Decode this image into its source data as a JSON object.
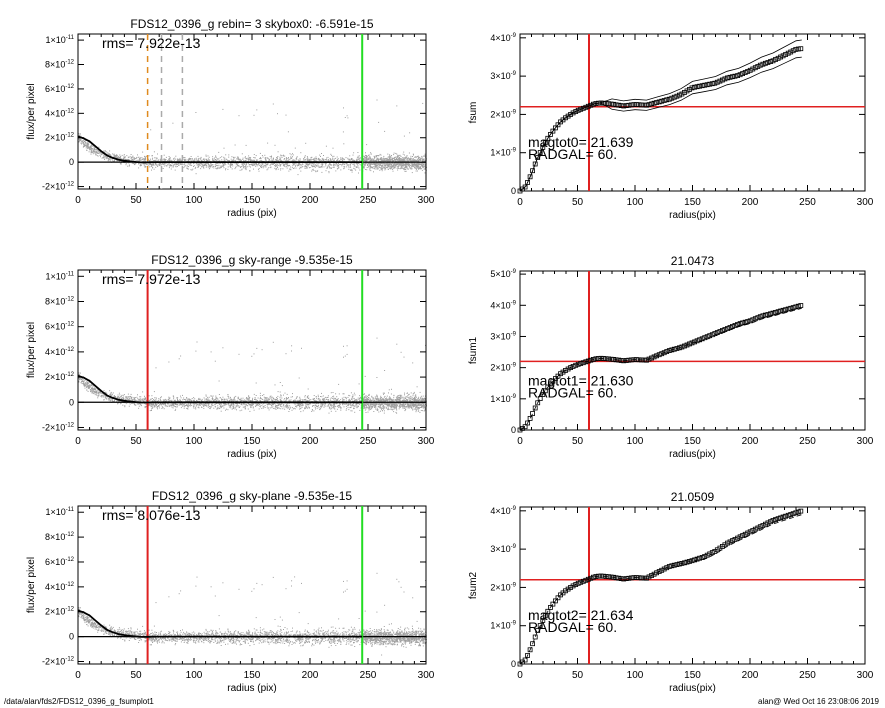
{
  "footer": {
    "left": "/data/alan/fds2/FDS12_0396_g_fsumplot1",
    "right": "alan@  Wed Oct 16 23:08:06 2019"
  },
  "colors": {
    "axis": "#000000",
    "scatter": "#a0a0a0",
    "profile": "#000000",
    "red_marker": "#e02020",
    "green_marker": "#22dd22",
    "orange_marker": "#e08a1e",
    "gray_marker": "#aaaaaa"
  },
  "chart_data": [
    {
      "id": "profile-1",
      "type": "scatter",
      "title": "FDS12_0396_g rebin= 3    skybox0: -6.591e-15",
      "xlabel": "radius (pix)",
      "ylabel": "flux/per pixel",
      "xlim": [
        0,
        300
      ],
      "ylim": [
        -2.2e-12,
        1.05e-11
      ],
      "xticks": [
        "0",
        "50",
        "100",
        "150",
        "200",
        "250",
        "300"
      ],
      "yticks": [
        {
          "v": 1e-11,
          "m": "1",
          "e": "-11"
        },
        {
          "v": 8e-12,
          "m": "8",
          "e": "-12"
        },
        {
          "v": 6e-12,
          "m": "6",
          "e": "-12"
        },
        {
          "v": 4e-12,
          "m": "4",
          "e": "-12"
        },
        {
          "v": 2e-12,
          "m": "2",
          "e": "-12"
        },
        {
          "v": 0,
          "m": "0",
          "e": ""
        },
        {
          "v": -2e-12,
          "m": "-2",
          "e": "-12"
        }
      ],
      "annotation": "rms= 7.922e-13",
      "vlines": [
        {
          "x": 60,
          "color": "orange_marker",
          "style": "dash"
        },
        {
          "x": 72,
          "color": "gray_marker",
          "style": "dash"
        },
        {
          "x": 90,
          "color": "gray_marker",
          "style": "dash"
        },
        {
          "x": 245,
          "color": "green_marker",
          "style": "solid"
        }
      ],
      "profile": {
        "x": [
          0,
          5,
          10,
          15,
          20,
          25,
          30,
          35,
          40,
          45,
          50,
          55,
          60,
          70,
          80,
          100,
          150,
          200,
          245
        ],
        "y": [
          2.1e-12,
          1.95e-12,
          1.7e-12,
          1.3e-12,
          9e-13,
          5.5e-13,
          3.5e-13,
          2e-13,
          1.2e-13,
          6e-14,
          1e-14,
          -2e-14,
          -1e-14,
          0,
          0,
          0,
          0,
          0,
          0
        ]
      }
    },
    {
      "id": "cumulative-1",
      "type": "scatter",
      "title": "",
      "xlabel": "radius(pix)",
      "ylabel": "fsum",
      "xlim": [
        0,
        300
      ],
      "ylim": [
        0,
        4.1e-09
      ],
      "xticks": [
        "0",
        "50",
        "100",
        "150",
        "200",
        "250",
        "300"
      ],
      "yticks": [
        {
          "v": 4e-09,
          "m": "4",
          "e": "-9"
        },
        {
          "v": 3e-09,
          "m": "3",
          "e": "-9"
        },
        {
          "v": 2e-09,
          "m": "2",
          "e": "-9"
        },
        {
          "v": 1e-09,
          "m": "1",
          "e": "-9"
        },
        {
          "v": 0,
          "m": "0",
          "e": ""
        }
      ],
      "annotations": [
        "magtot0=  21.639",
        "RADGAL=     60."
      ],
      "vline": 60,
      "hline": 2.2e-09,
      "envelope": true,
      "curve": {
        "x": [
          0,
          5,
          10,
          15,
          20,
          25,
          30,
          35,
          40,
          45,
          50,
          55,
          60,
          65,
          70,
          80,
          90,
          100,
          110,
          120,
          130,
          140,
          150,
          160,
          170,
          180,
          190,
          200,
          210,
          220,
          230,
          240,
          245
        ],
        "y": [
          0,
          1.2e-10,
          4.5e-10,
          8.5e-10,
          1.15e-09,
          1.42e-09,
          1.62e-09,
          1.8e-09,
          1.92e-09,
          2.02e-09,
          2.1e-09,
          2.16e-09,
          2.22e-09,
          2.28e-09,
          2.3e-09,
          2.27e-09,
          2.22e-09,
          2.26e-09,
          2.24e-09,
          2.32e-09,
          2.4e-09,
          2.52e-09,
          2.7e-09,
          2.76e-09,
          2.82e-09,
          2.95e-09,
          3.02e-09,
          3.15e-09,
          3.3e-09,
          3.4e-09,
          3.55e-09,
          3.7e-09,
          3.72e-09
        ]
      }
    },
    {
      "id": "profile-2",
      "type": "scatter",
      "title": "FDS12_0396_g sky-range -9.535e-15",
      "xlabel": "radius (pix)",
      "ylabel": "flux/per pixel",
      "xlim": [
        0,
        300
      ],
      "ylim": [
        -2.2e-12,
        1.05e-11
      ],
      "xticks": [
        "0",
        "50",
        "100",
        "150",
        "200",
        "250",
        "300"
      ],
      "yticks": [
        {
          "v": 1e-11,
          "m": "1",
          "e": "-11"
        },
        {
          "v": 8e-12,
          "m": "8",
          "e": "-12"
        },
        {
          "v": 6e-12,
          "m": "6",
          "e": "-12"
        },
        {
          "v": 4e-12,
          "m": "4",
          "e": "-12"
        },
        {
          "v": 2e-12,
          "m": "2",
          "e": "-12"
        },
        {
          "v": 0,
          "m": "0",
          "e": ""
        },
        {
          "v": -2e-12,
          "m": "-2",
          "e": "-12"
        }
      ],
      "annotation": "rms= 7.972e-13",
      "vlines": [
        {
          "x": 60,
          "color": "red_marker",
          "style": "solid"
        },
        {
          "x": 245,
          "color": "green_marker",
          "style": "solid"
        }
      ],
      "profile": {
        "x": [
          0,
          5,
          10,
          15,
          20,
          25,
          30,
          35,
          40,
          45,
          50,
          55,
          60,
          70,
          80,
          100,
          150,
          200,
          245
        ],
        "y": [
          2.1e-12,
          1.95e-12,
          1.7e-12,
          1.3e-12,
          9e-13,
          5.5e-13,
          3.5e-13,
          2e-13,
          1.2e-13,
          6e-14,
          1e-14,
          -2e-14,
          -1e-14,
          0,
          0,
          0,
          0,
          0,
          0
        ]
      }
    },
    {
      "id": "cumulative-2",
      "type": "scatter",
      "title": "21.0473",
      "xlabel": "radius(pix)",
      "ylabel": "fsum1",
      "xlim": [
        0,
        300
      ],
      "ylim": [
        0,
        5.1e-09
      ],
      "xticks": [
        "0",
        "50",
        "100",
        "150",
        "200",
        "250",
        "300"
      ],
      "yticks": [
        {
          "v": 5e-09,
          "m": "5",
          "e": "-9"
        },
        {
          "v": 4e-09,
          "m": "4",
          "e": "-9"
        },
        {
          "v": 3e-09,
          "m": "3",
          "e": "-9"
        },
        {
          "v": 2e-09,
          "m": "2",
          "e": "-9"
        },
        {
          "v": 1e-09,
          "m": "1",
          "e": "-9"
        },
        {
          "v": 0,
          "m": "0",
          "e": ""
        }
      ],
      "annotations": [
        "magtot1=  21.630",
        "RADGAL=     60."
      ],
      "vline": 60,
      "hline": 2.2e-09,
      "envelope": false,
      "curve": {
        "x": [
          0,
          5,
          10,
          15,
          20,
          25,
          30,
          35,
          40,
          45,
          50,
          55,
          60,
          65,
          70,
          80,
          90,
          100,
          110,
          120,
          130,
          140,
          150,
          160,
          170,
          180,
          190,
          200,
          210,
          220,
          230,
          240,
          245
        ],
        "y": [
          0,
          1.2e-10,
          4.5e-10,
          8.5e-10,
          1.15e-09,
          1.42e-09,
          1.62e-09,
          1.8e-09,
          1.92e-09,
          2.02e-09,
          2.1e-09,
          2.16e-09,
          2.22e-09,
          2.28e-09,
          2.3e-09,
          2.27e-09,
          2.22e-09,
          2.26e-09,
          2.24e-09,
          2.4e-09,
          2.55e-09,
          2.65e-09,
          2.8e-09,
          2.95e-09,
          3.1e-09,
          3.25e-09,
          3.4e-09,
          3.5e-09,
          3.65e-09,
          3.75e-09,
          3.85e-09,
          3.95e-09,
          4e-09
        ]
      }
    },
    {
      "id": "profile-3",
      "type": "scatter",
      "title": "FDS12_0396_g sky-plane -9.535e-15",
      "xlabel": "radius (pix)",
      "ylabel": "flux/per pixel",
      "xlim": [
        0,
        300
      ],
      "ylim": [
        -2.2e-12,
        1.05e-11
      ],
      "xticks": [
        "0",
        "50",
        "100",
        "150",
        "200",
        "250",
        "300"
      ],
      "yticks": [
        {
          "v": 1e-11,
          "m": "1",
          "e": "-11"
        },
        {
          "v": 8e-12,
          "m": "8",
          "e": "-12"
        },
        {
          "v": 6e-12,
          "m": "6",
          "e": "-12"
        },
        {
          "v": 4e-12,
          "m": "4",
          "e": "-12"
        },
        {
          "v": 2e-12,
          "m": "2",
          "e": "-12"
        },
        {
          "v": 0,
          "m": "0",
          "e": ""
        },
        {
          "v": -2e-12,
          "m": "-2",
          "e": "-12"
        }
      ],
      "annotation": "rms= 8.076e-13",
      "vlines": [
        {
          "x": 60,
          "color": "red_marker",
          "style": "solid"
        },
        {
          "x": 245,
          "color": "green_marker",
          "style": "solid"
        }
      ],
      "profile": {
        "x": [
          0,
          5,
          10,
          15,
          20,
          25,
          30,
          35,
          40,
          45,
          50,
          55,
          60,
          70,
          80,
          100,
          150,
          200,
          245
        ],
        "y": [
          2.1e-12,
          1.95e-12,
          1.7e-12,
          1.3e-12,
          9e-13,
          5.5e-13,
          3.5e-13,
          2e-13,
          1.2e-13,
          6e-14,
          1e-14,
          -2e-14,
          -1e-14,
          0,
          0,
          0,
          0,
          0,
          0
        ]
      }
    },
    {
      "id": "cumulative-3",
      "type": "scatter",
      "title": "21.0509",
      "xlabel": "radius(pix)",
      "ylabel": "fsum2",
      "xlim": [
        0,
        300
      ],
      "ylim": [
        0,
        4.1e-09
      ],
      "xticks": [
        "0",
        "50",
        "100",
        "150",
        "200",
        "250",
        "300"
      ],
      "yticks": [
        {
          "v": 4e-09,
          "m": "4",
          "e": "-9"
        },
        {
          "v": 3e-09,
          "m": "3",
          "e": "-9"
        },
        {
          "v": 2e-09,
          "m": "2",
          "e": "-9"
        },
        {
          "v": 1e-09,
          "m": "1",
          "e": "-9"
        },
        {
          "v": 0,
          "m": "0",
          "e": ""
        }
      ],
      "annotations": [
        "magtot2=  21.634",
        "RADGAL=     60."
      ],
      "vline": 60,
      "hline": 2.2e-09,
      "envelope": false,
      "curve": {
        "x": [
          0,
          5,
          10,
          15,
          20,
          25,
          30,
          35,
          40,
          45,
          50,
          55,
          60,
          65,
          70,
          80,
          90,
          100,
          110,
          120,
          130,
          140,
          150,
          160,
          170,
          180,
          190,
          200,
          210,
          220,
          230,
          240,
          245
        ],
        "y": [
          0,
          1.2e-10,
          4.5e-10,
          8.5e-10,
          1.15e-09,
          1.42e-09,
          1.62e-09,
          1.8e-09,
          1.92e-09,
          2.02e-09,
          2.1e-09,
          2.16e-09,
          2.22e-09,
          2.28e-09,
          2.3e-09,
          2.27e-09,
          2.22e-09,
          2.26e-09,
          2.24e-09,
          2.4e-09,
          2.55e-09,
          2.62e-09,
          2.7e-09,
          2.8e-09,
          2.95e-09,
          3.15e-09,
          3.3e-09,
          3.45e-09,
          3.6e-09,
          3.75e-09,
          3.85e-09,
          3.95e-09,
          4e-09
        ]
      }
    }
  ]
}
